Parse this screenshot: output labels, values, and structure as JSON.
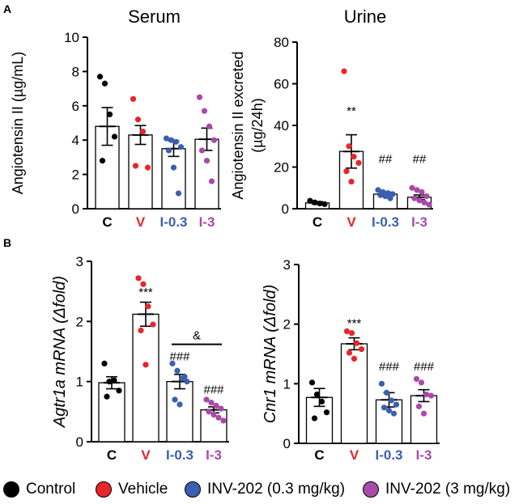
{
  "panel_labels": {
    "a": "A",
    "b": "B"
  },
  "groups": {
    "C": {
      "label": "C",
      "color": "#000000"
    },
    "V": {
      "label": "V",
      "color": "#e8252b"
    },
    "I-0.3": {
      "label": "I-0.3",
      "color": "#3a5fb0"
    },
    "I-3": {
      "label": "I-3",
      "color": "#a94aa8"
    }
  },
  "legend": [
    {
      "key": "C",
      "label": "Control",
      "color": "#000000"
    },
    {
      "key": "V",
      "label": "Vehicle",
      "color": "#e8252b"
    },
    {
      "key": "I-0.3",
      "label": "INV-202 (0.3 mg/kg)",
      "color": "#3a5fb0"
    },
    {
      "key": "I-3",
      "label": "INV-202 (3 mg/kg)",
      "color": "#a94aa8"
    }
  ],
  "chart_data": [
    {
      "id": "serum",
      "type": "bar",
      "title": "Serum",
      "ylabel": "Angiotensin II (µg/mL)",
      "ylim": [
        0,
        10
      ],
      "yticks": [
        0,
        2,
        4,
        6,
        8,
        10
      ],
      "categories": [
        "C",
        "V",
        "I-0.3",
        "I-3"
      ],
      "values": [
        4.8,
        4.3,
        3.5,
        4.05
      ],
      "sem": [
        1.1,
        0.55,
        0.45,
        0.65
      ],
      "points": [
        [
          7.7,
          7.3,
          5.5,
          4.2,
          2.8
        ],
        [
          6.4,
          5.2,
          4.5,
          2.4,
          2.5
        ],
        [
          4.1,
          4.0,
          3.9,
          3.6,
          3.4,
          2.4,
          0.9
        ],
        [
          6.5,
          5.7,
          4.8,
          4.0,
          3.4,
          2.8,
          1.6
        ]
      ],
      "annotations": []
    },
    {
      "id": "urine",
      "type": "bar",
      "title": "Urine",
      "ylabel": "Angiotensin II excreted (µg/24h)",
      "ylabel_lines": [
        "Angiotensin II excreted",
        "(µg/24h)"
      ],
      "ylim": [
        0,
        80
      ],
      "yticks": [
        0,
        20,
        40,
        60,
        80
      ],
      "categories": [
        "C",
        "V",
        "I-0.3",
        "I-3"
      ],
      "values": [
        2.8,
        27.5,
        7.0,
        5.5
      ],
      "sem": [
        0.6,
        8.0,
        1.0,
        1.1
      ],
      "points": [
        [
          3.8,
          3.0,
          2.5,
          2.2
        ],
        [
          66,
          30,
          25,
          22,
          18,
          13
        ],
        [
          9,
          8,
          7.5,
          7,
          6.5,
          6,
          5
        ],
        [
          10,
          9,
          8,
          6,
          5,
          4,
          3,
          2
        ]
      ],
      "annotations": [
        {
          "category": "V",
          "text": "**",
          "y": 45
        },
        {
          "category": "I-0.3",
          "text": "##",
          "y": 22
        },
        {
          "category": "I-3",
          "text": "##",
          "y": 22
        }
      ]
    },
    {
      "id": "agtr1a",
      "type": "bar",
      "title": "",
      "ylabel": "Agtr1a mRNA (Δfold)",
      "ylim": [
        0,
        3
      ],
      "yticks": [
        0,
        1,
        2,
        3
      ],
      "categories": [
        "C",
        "V",
        "I-0.3",
        "I-3"
      ],
      "values": [
        0.98,
        2.12,
        1.0,
        0.53
      ],
      "sem": [
        0.1,
        0.2,
        0.12,
        0.05
      ],
      "points": [
        [
          1.3,
          1.0,
          1.02,
          0.85,
          0.75
        ],
        [
          2.72,
          2.62,
          2.25,
          1.95,
          1.85,
          1.28
        ],
        [
          1.3,
          1.18,
          1.05,
          1.0,
          0.7,
          0.62,
          1.08
        ],
        [
          0.7,
          0.65,
          0.6,
          0.55,
          0.5,
          0.45,
          0.4,
          0.35
        ]
      ],
      "annotations": [
        {
          "category": "V",
          "text": "***",
          "y": 2.42
        },
        {
          "category": "I-0.3",
          "text": "###",
          "y": 1.35
        },
        {
          "category": "I-3",
          "text": "###",
          "y": 0.8
        }
      ],
      "bracket": {
        "from": "I-0.3",
        "to": "I-3",
        "y": 1.62,
        "text": "&"
      }
    },
    {
      "id": "cnr1",
      "type": "bar",
      "title": "",
      "ylabel": "Cnr1 mRNA (Δfold)",
      "ylim": [
        0,
        3
      ],
      "yticks": [
        0,
        1,
        2,
        3
      ],
      "categories": [
        "C",
        "V",
        "I-0.3",
        "I-3"
      ],
      "values": [
        0.77,
        1.67,
        0.73,
        0.8
      ],
      "sem": [
        0.15,
        0.1,
        0.12,
        0.1
      ],
      "points": [
        [
          1.02,
          0.82,
          0.7,
          0.52,
          0.42
        ],
        [
          1.88,
          1.85,
          1.68,
          1.58,
          1.52,
          1.42
        ],
        [
          1.0,
          0.85,
          0.72,
          0.65,
          0.6,
          0.55,
          0.5
        ],
        [
          1.08,
          1.02,
          0.82,
          0.8,
          0.62,
          0.5
        ]
      ],
      "annotations": [
        {
          "category": "V",
          "text": "***",
          "y": 1.95
        },
        {
          "category": "I-0.3",
          "text": "###",
          "y": 1.22
        },
        {
          "category": "I-3",
          "text": "###",
          "y": 1.22
        }
      ]
    }
  ]
}
